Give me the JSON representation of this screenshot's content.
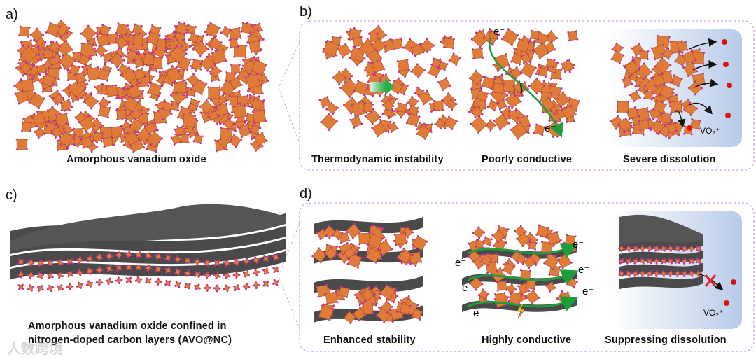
{
  "panels": {
    "a": {
      "label": "a)",
      "caption": "Amorphous vanadium oxide"
    },
    "b": {
      "label": "b)",
      "items": [
        {
          "caption": "Thermodynamic instability"
        },
        {
          "caption": "Poorly conductive",
          "electron_top": "e⁻",
          "electron_bottom": "e⁻"
        },
        {
          "caption": "Severe dissolution",
          "ion": "VO₂⁺"
        }
      ]
    },
    "c": {
      "label": "c)",
      "caption_line1": "Amorphous vanadium oxide confined in",
      "caption_line2": "nitrogen-doped carbon layers (AVO@NC)"
    },
    "d": {
      "label": "d)",
      "items": [
        {
          "caption": "Enhanced stability"
        },
        {
          "caption": "Highly conductive",
          "electron": "e⁻"
        },
        {
          "caption": "Suppressing dissolution",
          "ion": "VO₂⁺"
        }
      ]
    }
  },
  "colors": {
    "octahedron": "#e07b39",
    "vertex": "#c0339a",
    "carbon": "#4a4a4a",
    "frame": "#c9a0e8",
    "arrow_green": "#1e9e3a",
    "block_red": "#e8232a",
    "panel_bg": "#b9cbe8"
  },
  "watermark": "人数跨境"
}
